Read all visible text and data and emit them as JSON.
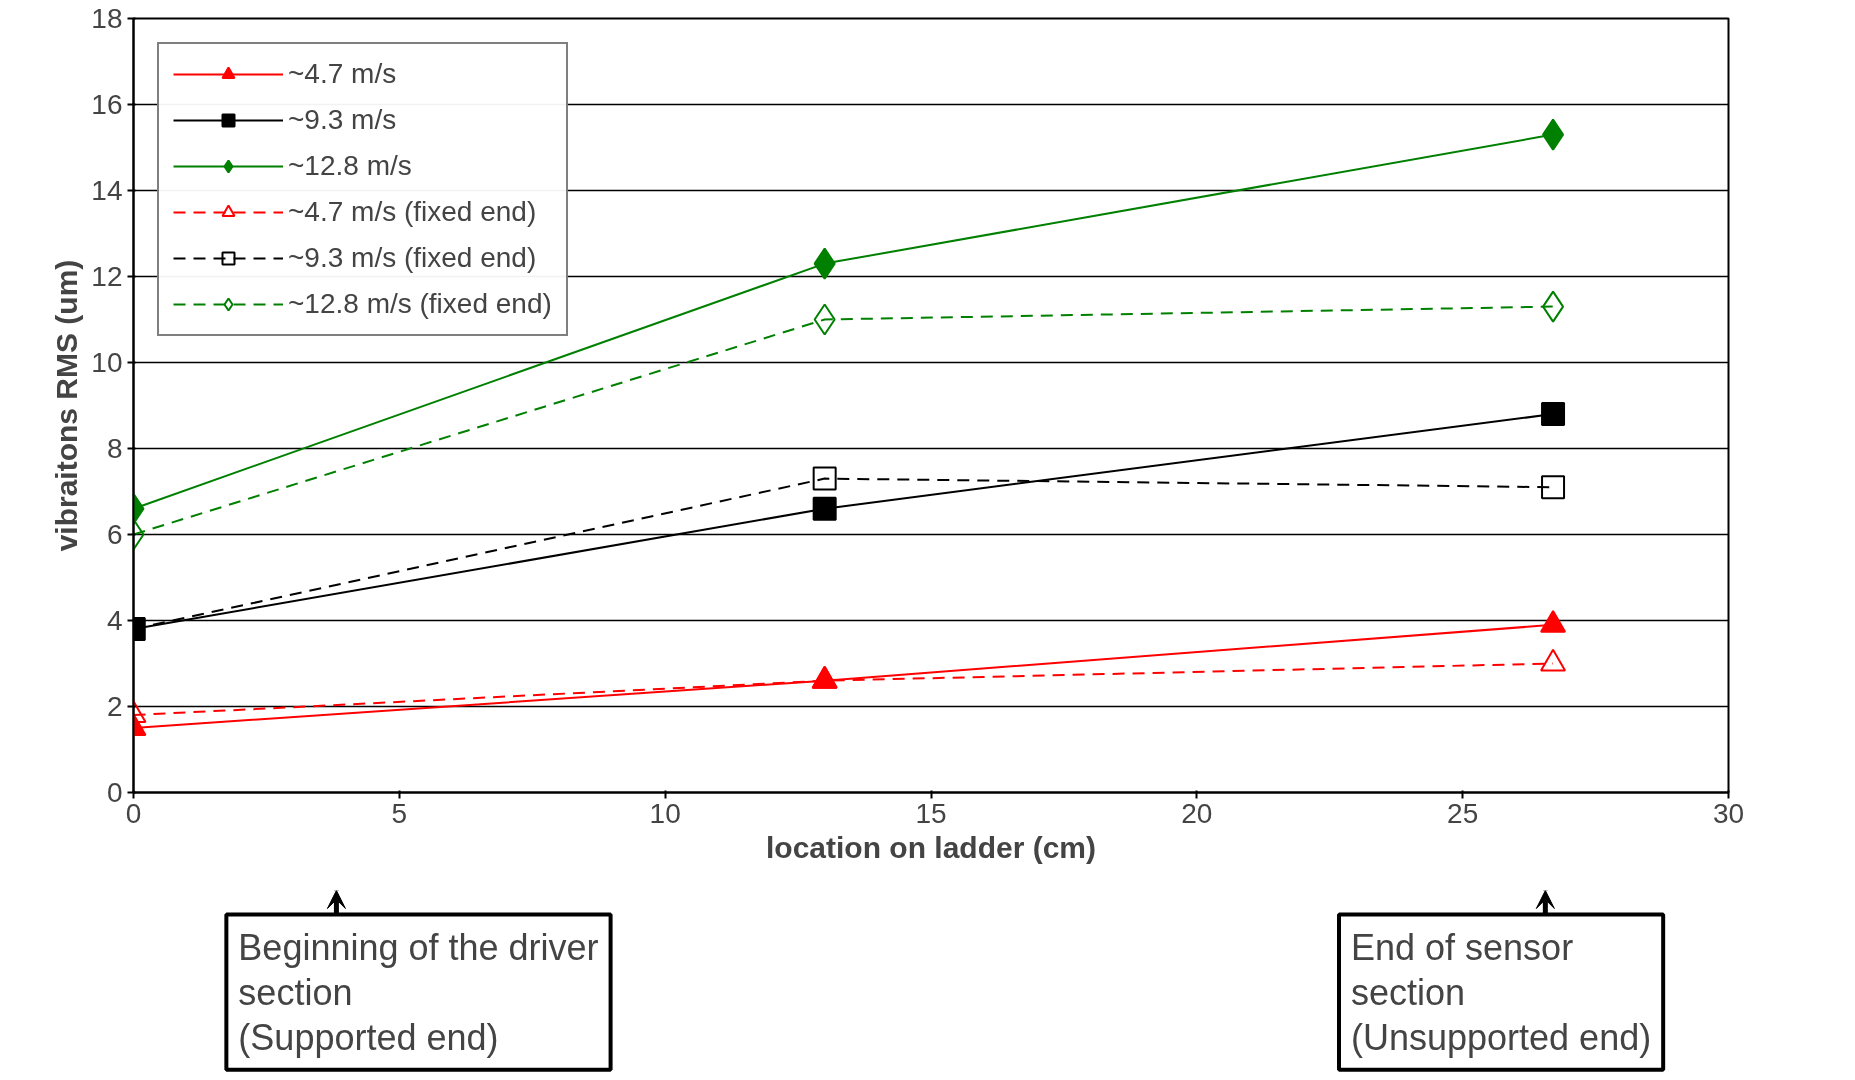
{
  "chart_data": {
    "type": "line",
    "xlabel": "location on ladder (cm)",
    "ylabel": "vibraitons RMS (um)",
    "x": [
      0,
      13,
      26.7
    ],
    "xlim": [
      0,
      30
    ],
    "xticks": [
      0,
      5,
      10,
      15,
      20,
      25,
      30
    ],
    "ylim": [
      0,
      18
    ],
    "yticks": [
      0,
      2,
      4,
      6,
      8,
      10,
      12,
      14,
      16,
      18
    ],
    "grid": "y",
    "legend": "top left",
    "series": [
      {
        "name": "~4.7 m/s",
        "color": "#ff0000",
        "values": [
          1.5,
          2.6,
          3.9
        ],
        "marker": "triangle",
        "line_style": "solid"
      },
      {
        "name": "~9.3 m/s",
        "color": "#000000",
        "values": [
          3.8,
          6.6,
          8.8
        ],
        "marker": "square",
        "line_style": "solid"
      },
      {
        "name": "~12.8 m/s",
        "color": "#008000",
        "values": [
          6.6,
          12.3,
          15.3
        ],
        "marker": "diamond",
        "line_style": "solid"
      },
      {
        "name": "~4.7 m/s (fixed end)",
        "color": "#ff0000",
        "values": [
          1.8,
          2.6,
          3.0
        ],
        "marker": "triangle",
        "line_style": "dashed"
      },
      {
        "name": "~9.3 m/s (fixed end)",
        "color": "#000000",
        "values": [
          3.8,
          7.3,
          7.1
        ],
        "marker": "square",
        "line_style": "dashed"
      },
      {
        "name": "~12.8 m/s (fixed end)",
        "color": "#008000",
        "values": [
          6.0,
          11.0,
          11.3
        ],
        "marker": "diamond",
        "line_style": "dashed"
      }
    ],
    "annotations": [
      "Beginning of the driver\nsection\n(Supported end)",
      "End of sensor\nsection\n(Unsupported end)"
    ]
  }
}
